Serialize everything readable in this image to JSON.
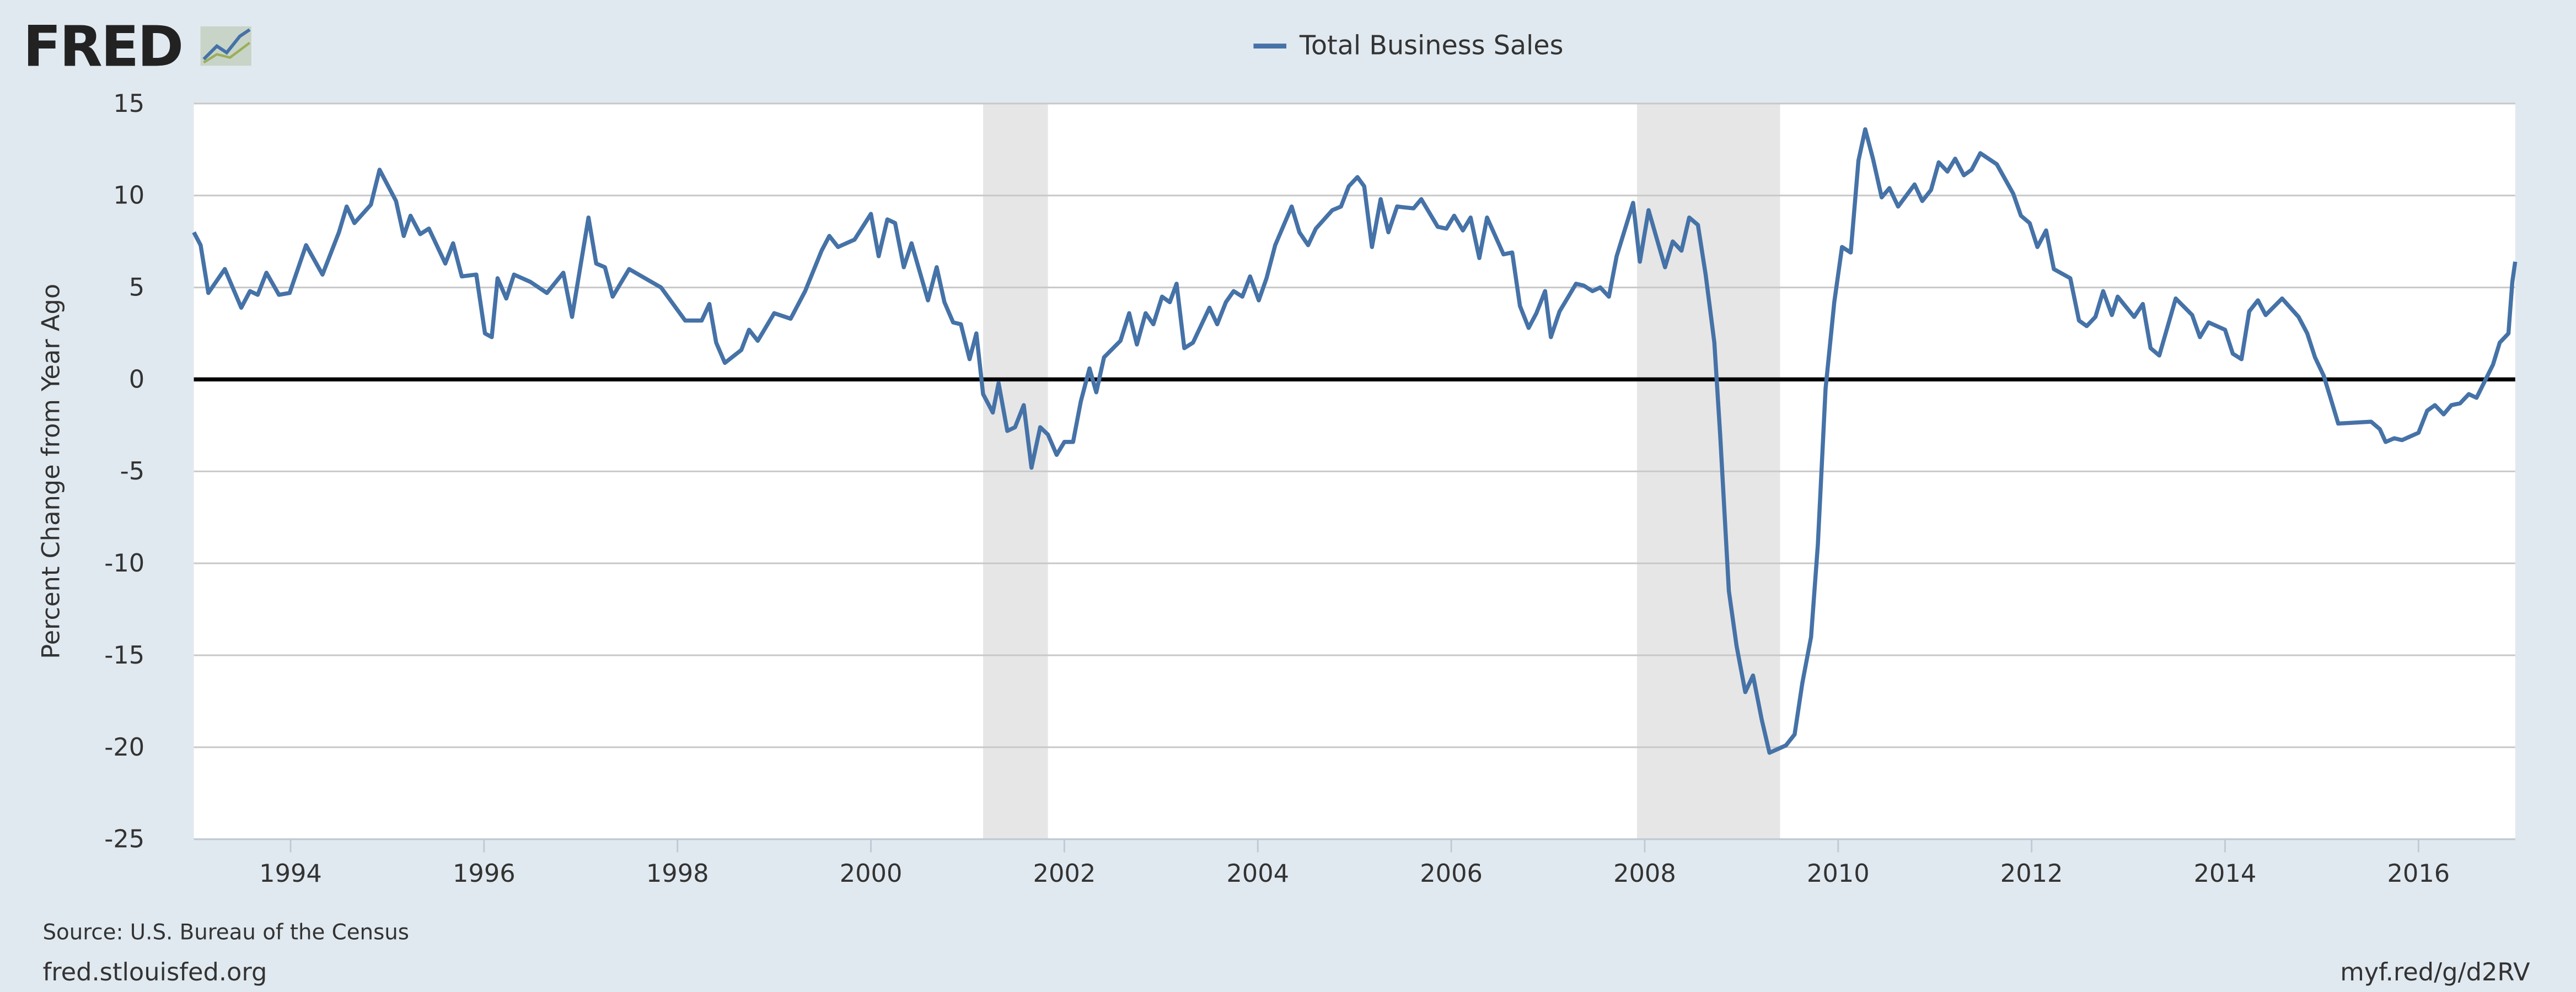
{
  "logo": "FRED",
  "chart_data": {
    "type": "line",
    "ylabel": "Percent Change from Year Ago",
    "source": "Source: U.S. Bureau of the Census",
    "site": "fred.stlouisfed.org",
    "short_url": "myf.red/g/d2RV",
    "xlim": [
      1993,
      2017
    ],
    "xticks": [
      1994,
      1996,
      1998,
      2000,
      2002,
      2004,
      2006,
      2008,
      2010,
      2012,
      2014,
      2016
    ],
    "ylim": [
      -25,
      15
    ],
    "yticks": [
      -25,
      -20,
      -15,
      -10,
      -5,
      0,
      5,
      10,
      15
    ],
    "grid": true,
    "zero_line": true,
    "recession_color": "#e6e6e6",
    "recessions": [
      [
        2001.16,
        2001.83
      ],
      [
        2007.92,
        2009.4
      ]
    ],
    "legend": "top",
    "series": [
      {
        "name": "Total Business Sales",
        "color": "#4572a7",
        "x": [
          1993.0,
          1993.07,
          1993.15,
          1993.32,
          1993.49,
          1993.58,
          1993.66,
          1993.75,
          1993.88,
          1993.99,
          1994.16,
          1994.33,
          1994.5,
          1994.58,
          1994.66,
          1994.83,
          1994.92,
          1995.09,
          1995.17,
          1995.24,
          1995.34,
          1995.43,
          1995.6,
          1995.68,
          1995.77,
          1995.92,
          1996.01,
          1996.08,
          1996.14,
          1996.23,
          1996.31,
          1996.48,
          1996.65,
          1996.82,
          1996.91,
          1997.08,
          1997.16,
          1997.25,
          1997.33,
          1997.5,
          1997.83,
          1998.08,
          1998.25,
          1998.33,
          1998.4,
          1998.49,
          1998.66,
          1998.74,
          1998.83,
          1999.0,
          1999.17,
          1999.32,
          1999.49,
          1999.57,
          1999.66,
          1999.83,
          2000.0,
          2000.08,
          2000.17,
          2000.25,
          2000.34,
          2000.42,
          2000.59,
          2000.68,
          2000.76,
          2000.85,
          2000.93,
          2001.02,
          2001.09,
          2001.16,
          2001.26,
          2001.32,
          2001.41,
          2001.49,
          2001.58,
          2001.66,
          2001.75,
          2001.83,
          2001.92,
          2002.0,
          2002.09,
          2002.17,
          2002.26,
          2002.33,
          2002.41,
          2002.58,
          2002.67,
          2002.75,
          2002.84,
          2002.92,
          2003.01,
          2003.09,
          2003.16,
          2003.24,
          2003.33,
          2003.5,
          2003.58,
          2003.67,
          2003.75,
          2003.84,
          2003.92,
          2004.01,
          2004.09,
          2004.18,
          2004.35,
          2004.43,
          2004.52,
          2004.6,
          2004.77,
          2004.86,
          2004.94,
          2005.03,
          2005.1,
          2005.18,
          2005.27,
          2005.35,
          2005.44,
          2005.61,
          2005.69,
          2005.86,
          2005.95,
          2006.03,
          2006.12,
          2006.2,
          2006.29,
          2006.37,
          2006.54,
          2006.63,
          2006.71,
          2006.8,
          2006.88,
          2006.97,
          2007.03,
          2007.12,
          2007.29,
          2007.37,
          2007.46,
          2007.54,
          2007.63,
          2007.71,
          2007.88,
          2007.95,
          2008.04,
          2008.21,
          2008.29,
          2008.38,
          2008.46,
          2008.55,
          2008.63,
          2008.72,
          2008.78,
          2008.87,
          2008.95,
          2009.04,
          2009.12,
          2009.21,
          2009.29,
          2009.46,
          2009.55,
          2009.63,
          2009.72,
          2009.79,
          2009.87,
          2009.96,
          2010.04,
          2010.13,
          2010.21,
          2010.28,
          2010.36,
          2010.45,
          2010.53,
          2010.62,
          2010.79,
          2010.87,
          2010.96,
          2011.04,
          2011.13,
          2011.21,
          2011.3,
          2011.38,
          2011.47,
          2011.64,
          2011.81,
          2011.89,
          2011.98,
          2012.06,
          2012.15,
          2012.23,
          2012.4,
          2012.49,
          2012.57,
          2012.66,
          2012.74,
          2012.83,
          2012.89,
          2013.06,
          2013.15,
          2013.23,
          2013.32,
          2013.49,
          2013.66,
          2013.74,
          2013.83,
          2014.0,
          2014.08,
          2014.17,
          2014.25,
          2014.34,
          2014.42,
          2014.59,
          2014.76,
          2014.85,
          2014.93,
          2015.02,
          2015.09,
          2015.17,
          2015.51,
          2015.6,
          2015.66,
          2015.75,
          2015.83,
          2016.0,
          2016.09,
          2016.17,
          2016.26,
          2016.34,
          2016.43,
          2016.52,
          2016.6,
          2016.77,
          2016.84,
          2016.93,
          2016.97,
          2017.0
        ],
        "values": [
          8,
          7.3,
          4.7,
          6,
          3.9,
          4.8,
          4.6,
          5.8,
          4.6,
          4.7,
          7.3,
          5.7,
          8,
          9.4,
          8.5,
          9.5,
          11.4,
          9.7,
          7.8,
          8.9,
          7.9,
          8.2,
          6.3,
          7.4,
          5.6,
          5.7,
          2.5,
          2.3,
          5.5,
          4.4,
          5.7,
          5.3,
          4.7,
          5.8,
          3.4,
          8.8,
          6.3,
          6.1,
          4.5,
          6.0,
          5.0,
          3.2,
          3.2,
          4.1,
          2.0,
          0.9,
          1.6,
          2.7,
          2.1,
          3.6,
          3.3,
          4.8,
          7,
          7.8,
          7.2,
          7.6,
          9.0,
          6.7,
          8.7,
          8.5,
          6.1,
          7.4,
          4.3,
          6.1,
          4.2,
          3.1,
          3.0,
          1.1,
          2.5,
          -0.8,
          -1.8,
          -0.2,
          -2.8,
          -2.6,
          -1.4,
          -4.8,
          -2.6,
          -3.0,
          -4.1,
          -3.4,
          -3.4,
          -1.2,
          0.6,
          -0.7,
          1.2,
          2.1,
          3.6,
          1.9,
          3.6,
          3.0,
          4.5,
          4.2,
          5.2,
          1.7,
          2.0,
          3.9,
          3.0,
          4.2,
          4.8,
          4.5,
          5.6,
          4.3,
          5.5,
          7.3,
          9.4,
          8.0,
          7.3,
          8.2,
          9.2,
          9.4,
          10.5,
          11.0,
          10.5,
          7.2,
          9.8,
          8.0,
          9.4,
          9.3,
          9.8,
          8.3,
          8.2,
          8.9,
          8.1,
          8.8,
          6.6,
          8.8,
          6.8,
          6.9,
          4.0,
          2.8,
          3.6,
          4.8,
          2.3,
          3.7,
          5.2,
          5.1,
          4.8,
          5.0,
          4.5,
          6.7,
          9.6,
          6.4,
          9.2,
          6.1,
          7.5,
          7.0,
          8.8,
          8.4,
          5.7,
          2,
          -3,
          -11.5,
          -14.5,
          -17,
          -16.1,
          -18.5,
          -20.3,
          -19.9,
          -19.3,
          -16.5,
          -14,
          -9,
          -0.5,
          4.2,
          7.2,
          6.9,
          11.9,
          13.6,
          12,
          9.9,
          10.4,
          9.4,
          10.6,
          9.7,
          10.3,
          11.8,
          11.3,
          12.0,
          11.1,
          11.4,
          12.3,
          11.7,
          10.1,
          8.9,
          8.5,
          7.2,
          8.1,
          6.0,
          5.5,
          3.2,
          2.9,
          3.4,
          4.8,
          3.5,
          4.5,
          3.4,
          4.1,
          1.7,
          1.3,
          4.4,
          3.5,
          2.3,
          3.1,
          2.7,
          1.4,
          1.1,
          3.7,
          4.3,
          3.5,
          4.4,
          3.4,
          2.5,
          1.2,
          0.2,
          -1,
          -2.4,
          -2.3,
          -2.7,
          -3.4,
          -3.2,
          -3.3,
          -2.9,
          -1.7,
          -1.4,
          -1.9,
          -1.4,
          -1.3,
          -0.8,
          -1.0,
          0.8,
          2,
          2.5,
          5.3,
          6.4
        ]
      }
    ]
  }
}
